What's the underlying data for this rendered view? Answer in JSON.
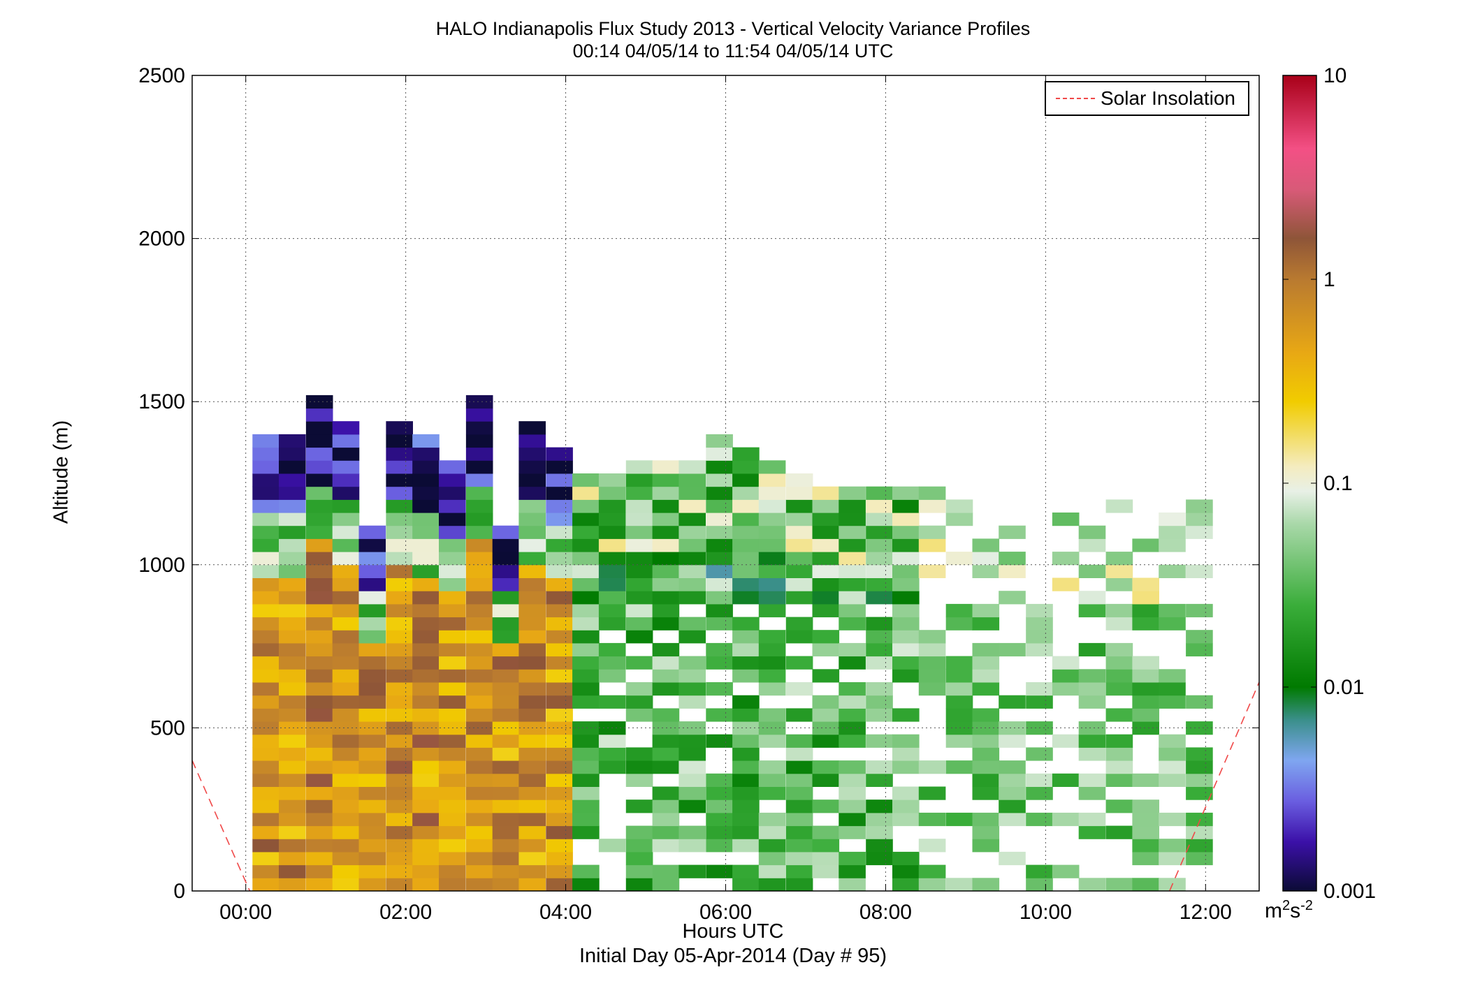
{
  "title": {
    "line1": "HALO Indianapolis Flux Study 2013 - Vertical Velocity Variance Profiles",
    "line2": "00:14 04/05/14 to 11:54 04/05/14  UTC"
  },
  "chart_data": {
    "type": "heatmap",
    "xlabel": "Hours UTC",
    "xlabel2": "Initial Day 05-Apr-2014 (Day # 95)",
    "ylabel": "Altitude (m)",
    "xlim": [
      -0.67,
      12.67
    ],
    "ylim": [
      0,
      2500
    ],
    "x_ticks": [
      0,
      2,
      4,
      6,
      8,
      10,
      12
    ],
    "x_tick_labels": [
      "00:00",
      "02:00",
      "04:00",
      "06:00",
      "08:00",
      "10:00",
      "12:00"
    ],
    "y_ticks": [
      0,
      500,
      1000,
      1500,
      2000,
      2500
    ],
    "y_tick_labels": [
      "0",
      "500",
      "1000",
      "1500",
      "2000",
      "2500"
    ],
    "grid": true,
    "legend": {
      "entries": [
        "Solar Insolation"
      ],
      "position": "top-right"
    },
    "colorbar": {
      "scale": "log",
      "range": [
        0.001,
        10
      ],
      "tick_values": [
        0.001,
        0.01,
        0.1,
        1,
        10
      ],
      "tick_labels": [
        "0.001",
        "0.01",
        "0.1",
        "1",
        "10"
      ],
      "units_base": "m",
      "units_exp1": "2",
      "units_mid": "s",
      "units_exp2": "-2"
    },
    "time_bin_hours": 0.333,
    "altitude_bin_m": 40,
    "times_hours": [
      0.25,
      0.58,
      0.92,
      1.25,
      1.58,
      1.92,
      2.25,
      2.58,
      2.92,
      3.25,
      3.58,
      3.92,
      4.25,
      4.58,
      4.92,
      5.25,
      5.58,
      5.92,
      6.25,
      6.58,
      6.92,
      7.25,
      7.58,
      7.92,
      8.25,
      8.58,
      8.92,
      9.25,
      9.58,
      9.92,
      10.25,
      10.58,
      10.92,
      11.25,
      11.58,
      11.92
    ],
    "profile_top_altitude_m": [
      1380,
      1380,
      1500,
      1420,
      1100,
      1420,
      1380,
      1300,
      1500,
      1100,
      1420,
      1340,
      1260,
      1260,
      1300,
      1300,
      1300,
      1380,
      1340,
      1300,
      1260,
      1220,
      1220,
      1220,
      1220,
      1220,
      1180,
      1140,
      1140,
      900,
      1180,
      1140,
      1180,
      1140,
      1140,
      1180
    ],
    "solar_insolation": {
      "name": "Solar Insolation",
      "style": "dashed",
      "color": "#f04848",
      "segments": [
        {
          "x": [
            -0.67,
            0.05
          ],
          "y": [
            400,
            0
          ]
        },
        {
          "x": [
            11.55,
            12.67
          ],
          "y": [
            0,
            640
          ]
        }
      ]
    }
  }
}
